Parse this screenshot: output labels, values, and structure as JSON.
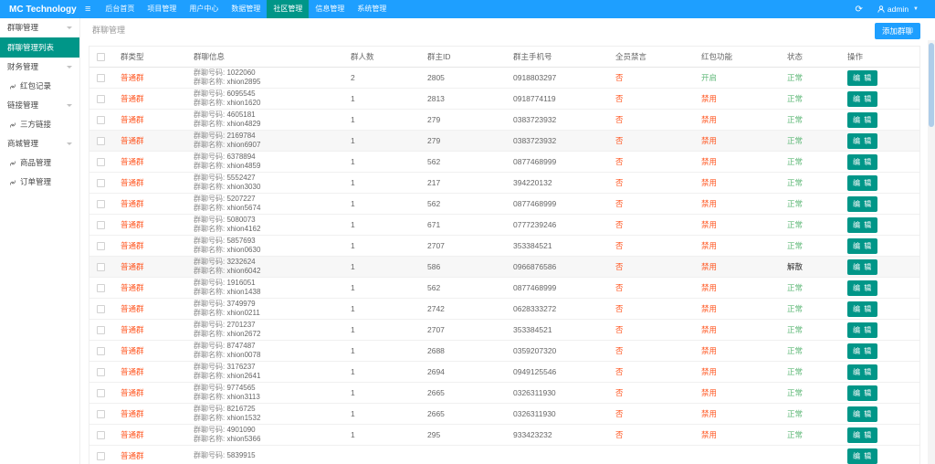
{
  "navbar": {
    "brand": "MC Technology",
    "hamburger": "≡",
    "active_index": 4,
    "items": [
      {
        "key": "home",
        "label": "后台首页"
      },
      {
        "key": "project",
        "label": "项目管理"
      },
      {
        "key": "user-center",
        "label": "用户中心"
      },
      {
        "key": "data",
        "label": "数据管理"
      },
      {
        "key": "community",
        "label": "社区管理"
      },
      {
        "key": "info",
        "label": "信息管理"
      },
      {
        "key": "system",
        "label": "系统管理"
      }
    ],
    "refresh_icon": "⟳",
    "user": "admin"
  },
  "sidebar": {
    "items": [
      {
        "type": "parent",
        "key": "group-chat",
        "label": "群聊管理"
      },
      {
        "type": "active",
        "key": "group-chat-list",
        "label": "群聊管理列表"
      },
      {
        "type": "parent",
        "key": "finance",
        "label": "财务管理"
      },
      {
        "type": "child",
        "key": "redpacket-records",
        "label": "红包记录"
      },
      {
        "type": "parent",
        "key": "links",
        "label": "链接管理"
      },
      {
        "type": "child",
        "key": "third-party-links",
        "label": "三方链接"
      },
      {
        "type": "parent",
        "key": "mall",
        "label": "商城管理"
      },
      {
        "type": "child",
        "key": "product-management",
        "label": "商品管理"
      },
      {
        "type": "child",
        "key": "order-management",
        "label": "订单管理"
      }
    ]
  },
  "breadcrumb": {
    "text": "群聊管理"
  },
  "toolbar": {
    "add_label": "添加群聊"
  },
  "labels": {
    "group_no": "群聊号码:",
    "group_name": "群聊名称:"
  },
  "colors": {
    "navbar_blue": "#1E9FFF",
    "accent_teal": "#009688",
    "danger_red": "#FF5722",
    "success_green": "#5FB878"
  },
  "table": {
    "edit_label": "编 辑",
    "col_headers": [
      "群类型",
      "群聊信息",
      "群人数",
      "群主ID",
      "群主手机号",
      "全员禁言",
      "红包功能",
      "状态",
      "操作"
    ],
    "rows": [
      {
        "type": "普通群",
        "no": "1022060",
        "name": "xhion2895",
        "members": "2",
        "owner_id": "2805",
        "phone": "0918803297",
        "mute": "否",
        "redpacket": "开启",
        "redpacket_on": true,
        "status": "正常",
        "status_type": "normal",
        "shaded": false
      },
      {
        "type": "普通群",
        "no": "6095545",
        "name": "xhion1620",
        "members": "1",
        "owner_id": "2813",
        "phone": "0918774119",
        "mute": "否",
        "redpacket": "禁用",
        "redpacket_on": false,
        "status": "正常",
        "status_type": "normal",
        "shaded": false
      },
      {
        "type": "普通群",
        "no": "4605181",
        "name": "xhion4829",
        "members": "1",
        "owner_id": "279",
        "phone": "0383723932",
        "mute": "否",
        "redpacket": "禁用",
        "redpacket_on": false,
        "status": "正常",
        "status_type": "normal",
        "shaded": false
      },
      {
        "type": "普通群",
        "no": "2169784",
        "name": "xhion6907",
        "members": "1",
        "owner_id": "279",
        "phone": "0383723932",
        "mute": "否",
        "redpacket": "禁用",
        "redpacket_on": false,
        "status": "正常",
        "status_type": "normal",
        "shaded": true
      },
      {
        "type": "普通群",
        "no": "6378894",
        "name": "xhion4859",
        "members": "1",
        "owner_id": "562",
        "phone": "0877468999",
        "mute": "否",
        "redpacket": "禁用",
        "redpacket_on": false,
        "status": "正常",
        "status_type": "normal",
        "shaded": false
      },
      {
        "type": "普通群",
        "no": "5552427",
        "name": "xhion3030",
        "members": "1",
        "owner_id": "217",
        "phone": "394220132",
        "mute": "否",
        "redpacket": "禁用",
        "redpacket_on": false,
        "status": "正常",
        "status_type": "normal",
        "shaded": false
      },
      {
        "type": "普通群",
        "no": "5207227",
        "name": "xhion5674",
        "members": "1",
        "owner_id": "562",
        "phone": "0877468999",
        "mute": "否",
        "redpacket": "禁用",
        "redpacket_on": false,
        "status": "正常",
        "status_type": "normal",
        "shaded": false
      },
      {
        "type": "普通群",
        "no": "5080073",
        "name": "xhion4162",
        "members": "1",
        "owner_id": "671",
        "phone": "0777239246",
        "mute": "否",
        "redpacket": "禁用",
        "redpacket_on": false,
        "status": "正常",
        "status_type": "normal",
        "shaded": false
      },
      {
        "type": "普通群",
        "no": "5857693",
        "name": "xhion0630",
        "members": "1",
        "owner_id": "2707",
        "phone": "353384521",
        "mute": "否",
        "redpacket": "禁用",
        "redpacket_on": false,
        "status": "正常",
        "status_type": "normal",
        "shaded": false
      },
      {
        "type": "普通群",
        "no": "3232624",
        "name": "xhion6042",
        "members": "1",
        "owner_id": "586",
        "phone": "0966876586",
        "mute": "否",
        "redpacket": "禁用",
        "redpacket_on": false,
        "status": "解散",
        "status_type": "dissolved",
        "shaded": true
      },
      {
        "type": "普通群",
        "no": "1916051",
        "name": "xhion1438",
        "members": "1",
        "owner_id": "562",
        "phone": "0877468999",
        "mute": "否",
        "redpacket": "禁用",
        "redpacket_on": false,
        "status": "正常",
        "status_type": "normal",
        "shaded": false
      },
      {
        "type": "普通群",
        "no": "3749979",
        "name": "xhion0211",
        "members": "1",
        "owner_id": "2742",
        "phone": "0628333272",
        "mute": "否",
        "redpacket": "禁用",
        "redpacket_on": false,
        "status": "正常",
        "status_type": "normal",
        "shaded": false
      },
      {
        "type": "普通群",
        "no": "2701237",
        "name": "xhion2672",
        "members": "1",
        "owner_id": "2707",
        "phone": "353384521",
        "mute": "否",
        "redpacket": "禁用",
        "redpacket_on": false,
        "status": "正常",
        "status_type": "normal",
        "shaded": false
      },
      {
        "type": "普通群",
        "no": "8747487",
        "name": "xhion0078",
        "members": "1",
        "owner_id": "2688",
        "phone": "0359207320",
        "mute": "否",
        "redpacket": "禁用",
        "redpacket_on": false,
        "status": "正常",
        "status_type": "normal",
        "shaded": false
      },
      {
        "type": "普通群",
        "no": "3176237",
        "name": "xhion2641",
        "members": "1",
        "owner_id": "2694",
        "phone": "0949125546",
        "mute": "否",
        "redpacket": "禁用",
        "redpacket_on": false,
        "status": "正常",
        "status_type": "normal",
        "shaded": false
      },
      {
        "type": "普通群",
        "no": "9774565",
        "name": "xhion3113",
        "members": "1",
        "owner_id": "2665",
        "phone": "0326311930",
        "mute": "否",
        "redpacket": "禁用",
        "redpacket_on": false,
        "status": "正常",
        "status_type": "normal",
        "shaded": false
      },
      {
        "type": "普通群",
        "no": "8216725",
        "name": "xhion1532",
        "members": "1",
        "owner_id": "2665",
        "phone": "0326311930",
        "mute": "否",
        "redpacket": "禁用",
        "redpacket_on": false,
        "status": "正常",
        "status_type": "normal",
        "shaded": false
      },
      {
        "type": "普通群",
        "no": "4901090",
        "name": "xhion5366",
        "members": "1",
        "owner_id": "295",
        "phone": "933423232",
        "mute": "否",
        "redpacket": "禁用",
        "redpacket_on": false,
        "status": "正常",
        "status_type": "normal",
        "shaded": false
      },
      {
        "type": "普通群",
        "no": "5839915",
        "name": "",
        "members": "",
        "owner_id": "",
        "phone": "",
        "mute": "",
        "redpacket": "",
        "redpacket_on": false,
        "status": "",
        "status_type": "",
        "shaded": false
      }
    ]
  }
}
